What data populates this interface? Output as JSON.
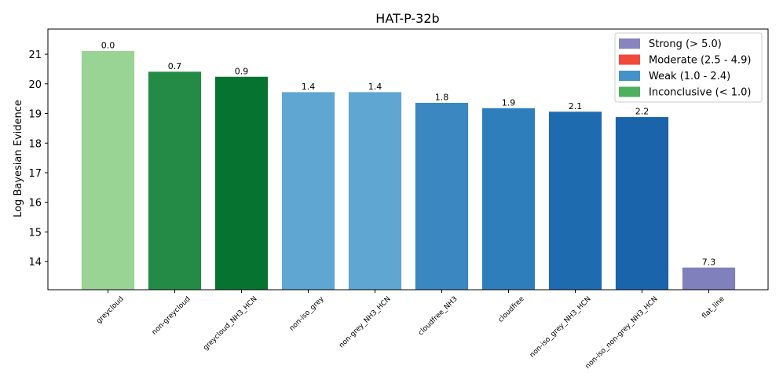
{
  "chart_data": {
    "type": "bar",
    "title": "HAT-P-32b",
    "xlabel": "",
    "ylabel": "Log Bayesian Evidence",
    "ylim": [
      13.05,
      21.85
    ],
    "yticks": [
      14,
      15,
      16,
      17,
      18,
      19,
      20,
      21
    ],
    "grid": false,
    "legend_position": "top-right",
    "categories": [
      "greycloud",
      "non-greycloud",
      "greycloud_NH3_HCN",
      "non-iso_grey",
      "non-grey_NH3_HCN",
      "cloudfree_NH3",
      "cloudfree",
      "non-iso_grey_NH3_HCN",
      "non-iso_non-grey_NH3_HCN",
      "flat_line"
    ],
    "values": [
      21.12,
      20.42,
      20.25,
      19.73,
      19.73,
      19.37,
      19.19,
      19.07,
      18.89,
      13.81
    ],
    "labels": [
      "0.0",
      "0.7",
      "0.9",
      "1.4",
      "1.4",
      "1.8",
      "1.9",
      "2.1",
      "2.2",
      "7.3"
    ],
    "colors": [
      "#99d494",
      "#238b45",
      "#077331",
      "#5fa6d2",
      "#5fa6d2",
      "#3a87c1",
      "#2f7ebc",
      "#1f6bb0",
      "#1a64ab",
      "#8080bd"
    ],
    "legend": [
      {
        "label": "Strong (> 5.0)",
        "color": "#8884be"
      },
      {
        "label": "Moderate (2.5 - 4.9)",
        "color": "#f14a3b"
      },
      {
        "label": "Weak (1.0 - 2.4)",
        "color": "#4592c8"
      },
      {
        "label": "Inconclusive (< 1.0)",
        "color": "#4daf5f"
      }
    ]
  }
}
